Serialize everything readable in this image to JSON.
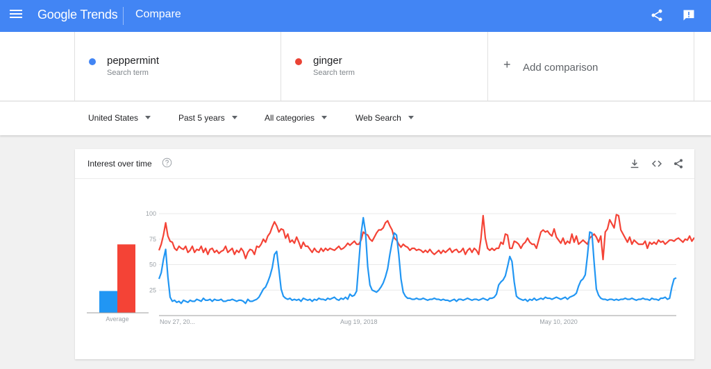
{
  "header": {
    "logo_text": "Google Trends",
    "page_title": "Compare"
  },
  "terms": [
    {
      "name": "peppermint",
      "type": "Search term",
      "color": "#4285f4"
    },
    {
      "name": "ginger",
      "type": "Search term",
      "color": "#ea4335"
    }
  ],
  "add_comparison": {
    "label": "Add comparison",
    "icon": "plus-icon"
  },
  "filters": {
    "region": "United States",
    "time_range": "Past 5 years",
    "category": "All categories",
    "search_type": "Web Search"
  },
  "card": {
    "title": "Interest over time"
  },
  "colors": {
    "accent": "#4285f4",
    "series_1": "#2196f3",
    "series_2": "#f44336"
  },
  "chart_data": {
    "type": "line",
    "yticks": [
      25,
      50,
      75,
      100
    ],
    "ylim": [
      0,
      100
    ],
    "x_tick_labels": [
      {
        "label": "Nov 27, 20...",
        "index": 0
      },
      {
        "label": "Aug 19, 2018",
        "index": 90
      },
      {
        "label": "May 10, 2020",
        "index": 180
      }
    ],
    "average_label": "Average",
    "averages": [
      {
        "name": "peppermint",
        "value": 22
      },
      {
        "name": "ginger",
        "value": 69
      }
    ],
    "series": [
      {
        "name": "peppermint",
        "values": [
          36,
          42,
          55,
          65,
          38,
          18,
          14,
          15,
          13,
          14,
          12,
          15,
          14,
          13,
          15,
          14,
          14,
          16,
          15,
          14,
          17,
          15,
          15,
          16,
          14,
          16,
          15,
          15,
          16,
          14,
          14,
          15,
          15,
          16,
          15,
          14,
          15,
          15,
          14,
          12,
          16,
          14,
          14,
          15,
          16,
          18,
          22,
          26,
          28,
          33,
          39,
          47,
          60,
          63,
          45,
          26,
          19,
          17,
          16,
          17,
          15,
          16,
          15,
          16,
          14,
          17,
          16,
          15,
          16,
          14,
          16,
          15,
          17,
          16,
          16,
          15,
          17,
          16,
          17,
          18,
          16,
          15,
          17,
          16,
          18,
          16,
          21,
          19,
          20,
          24,
          52,
          80,
          96,
          82,
          48,
          30,
          25,
          24,
          23,
          25,
          28,
          32,
          38,
          46,
          60,
          72,
          81,
          79,
          60,
          36,
          23,
          19,
          17,
          17,
          16,
          16,
          17,
          16,
          16,
          17,
          16,
          15,
          16,
          16,
          17,
          16,
          16,
          15,
          16,
          15,
          15,
          14,
          15,
          16,
          14,
          16,
          16,
          15,
          16,
          17,
          16,
          15,
          16,
          16,
          15,
          16,
          17,
          16,
          15,
          17,
          17,
          18,
          21,
          30,
          33,
          35,
          39,
          48,
          58,
          53,
          33,
          19,
          17,
          16,
          15,
          16,
          14,
          16,
          15,
          17,
          15,
          16,
          17,
          16,
          18,
          17,
          17,
          16,
          17,
          18,
          17,
          16,
          17,
          18,
          16,
          18,
          19,
          20,
          22,
          29,
          34,
          36,
          40,
          59,
          82,
          81,
          52,
          26,
          20,
          17,
          16,
          16,
          15,
          16,
          16,
          15,
          16,
          15,
          16,
          16,
          17,
          16,
          16,
          17,
          16,
          15,
          16,
          16,
          17,
          16,
          16,
          15,
          17,
          16,
          16,
          15,
          17,
          17,
          18,
          16,
          17,
          28,
          36,
          37
        ]
      },
      {
        "name": "ginger",
        "values": [
          64,
          70,
          79,
          91,
          78,
          73,
          72,
          66,
          64,
          68,
          66,
          65,
          68,
          62,
          64,
          68,
          62,
          65,
          64,
          68,
          62,
          66,
          60,
          65,
          66,
          62,
          64,
          61,
          63,
          64,
          68,
          62,
          64,
          66,
          60,
          64,
          62,
          66,
          63,
          56,
          62,
          65,
          64,
          60,
          68,
          67,
          70,
          75,
          72,
          78,
          81,
          87,
          92,
          88,
          82,
          85,
          84,
          76,
          80,
          72,
          74,
          71,
          77,
          72,
          66,
          72,
          68,
          68,
          65,
          62,
          66,
          63,
          62,
          66,
          63,
          66,
          64,
          66,
          65,
          64,
          66,
          68,
          65,
          66,
          68,
          71,
          69,
          71,
          73,
          70,
          70,
          74,
          82,
          80,
          79,
          75,
          73,
          77,
          81,
          84,
          84,
          86,
          91,
          93,
          88,
          84,
          76,
          74,
          70,
          67,
          70,
          68,
          67,
          64,
          66,
          66,
          64,
          65,
          64,
          62,
          64,
          62,
          65,
          62,
          60,
          62,
          64,
          61,
          64,
          62,
          64,
          66,
          62,
          64,
          65,
          62,
          63,
          66,
          60,
          64,
          66,
          62,
          66,
          64,
          60,
          75,
          98,
          76,
          66,
          64,
          66,
          64,
          66,
          66,
          72,
          70,
          80,
          79,
          66,
          66,
          73,
          72,
          70,
          66,
          70,
          72,
          76,
          72,
          70,
          70,
          66,
          74,
          82,
          84,
          82,
          83,
          80,
          78,
          85,
          77,
          74,
          71,
          76,
          70,
          73,
          71,
          80,
          72,
          78,
          70,
          72,
          74,
          72,
          70,
          76,
          78,
          80,
          77,
          72,
          78,
          55,
          82,
          85,
          94,
          90,
          86,
          99,
          98,
          84,
          80,
          76,
          72,
          77,
          70,
          74,
          72,
          70,
          70,
          70,
          73,
          66,
          72,
          70,
          72,
          70,
          74,
          72,
          73,
          70,
          72,
          74,
          74,
          73,
          75,
          76,
          74,
          72,
          75,
          74,
          78,
          73,
          76,
          75,
          76
        ]
      }
    ]
  }
}
